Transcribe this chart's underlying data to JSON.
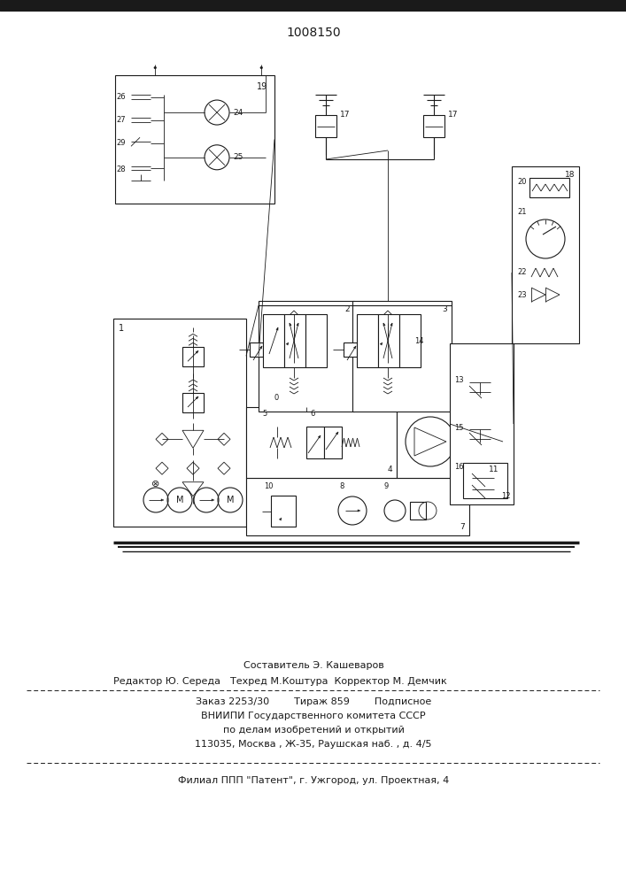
{
  "title": "1008150",
  "bg_color": "#f0f0f0",
  "line_color": "#1a1a1a",
  "footer": {
    "line1": "Составитель Э. Кашеваров",
    "line2_left": "Редактор Ю. Середа",
    "line2_right": "Техред М.Коштура  Корректор М. Демчик",
    "line3": "Заказ 2253/30        Тираж 859        Подписное",
    "line4": "ВНИИПИ Государственного комитета СССР",
    "line5": "по делам изобретений и открытий",
    "line6": "113035, Москва , Ж-35, Раушская наб. , д. 4/5",
    "line7": "Филиал ППП \"Патент\", г. Ужгород, ул. Проектная, 4"
  }
}
